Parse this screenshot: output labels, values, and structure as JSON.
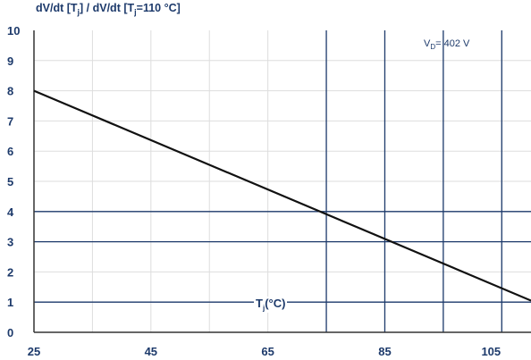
{
  "chart_data": {
    "type": "line",
    "title": {
      "a": "dV/dt [T",
      "b": "j",
      "c": "] / dV/dt [T",
      "d": "j",
      "e": "=110 °C]"
    },
    "xlim": [
      25,
      110
    ],
    "ylim": [
      0,
      10
    ],
    "x_ticks": [
      25,
      45,
      65,
      85,
      105
    ],
    "y_ticks": [
      0,
      1,
      2,
      3,
      4,
      5,
      6,
      7,
      8,
      9,
      10
    ],
    "xlabel": {
      "main": "T",
      "sub": "j",
      "rest": "(°C)"
    },
    "annotation": {
      "main": "V",
      "sub": "D",
      "rest": "= 402 V"
    },
    "series": [
      {
        "x": [
          25,
          110
        ],
        "y": [
          8.0,
          1.05
        ]
      }
    ],
    "ref_lines_x": [
      75,
      85,
      95,
      105
    ],
    "ref_lines_y": [
      1,
      3,
      4
    ],
    "grid": true,
    "colors": {
      "line": "#111111",
      "accent": "#1d3a6b",
      "grid": "#dddddd"
    }
  }
}
